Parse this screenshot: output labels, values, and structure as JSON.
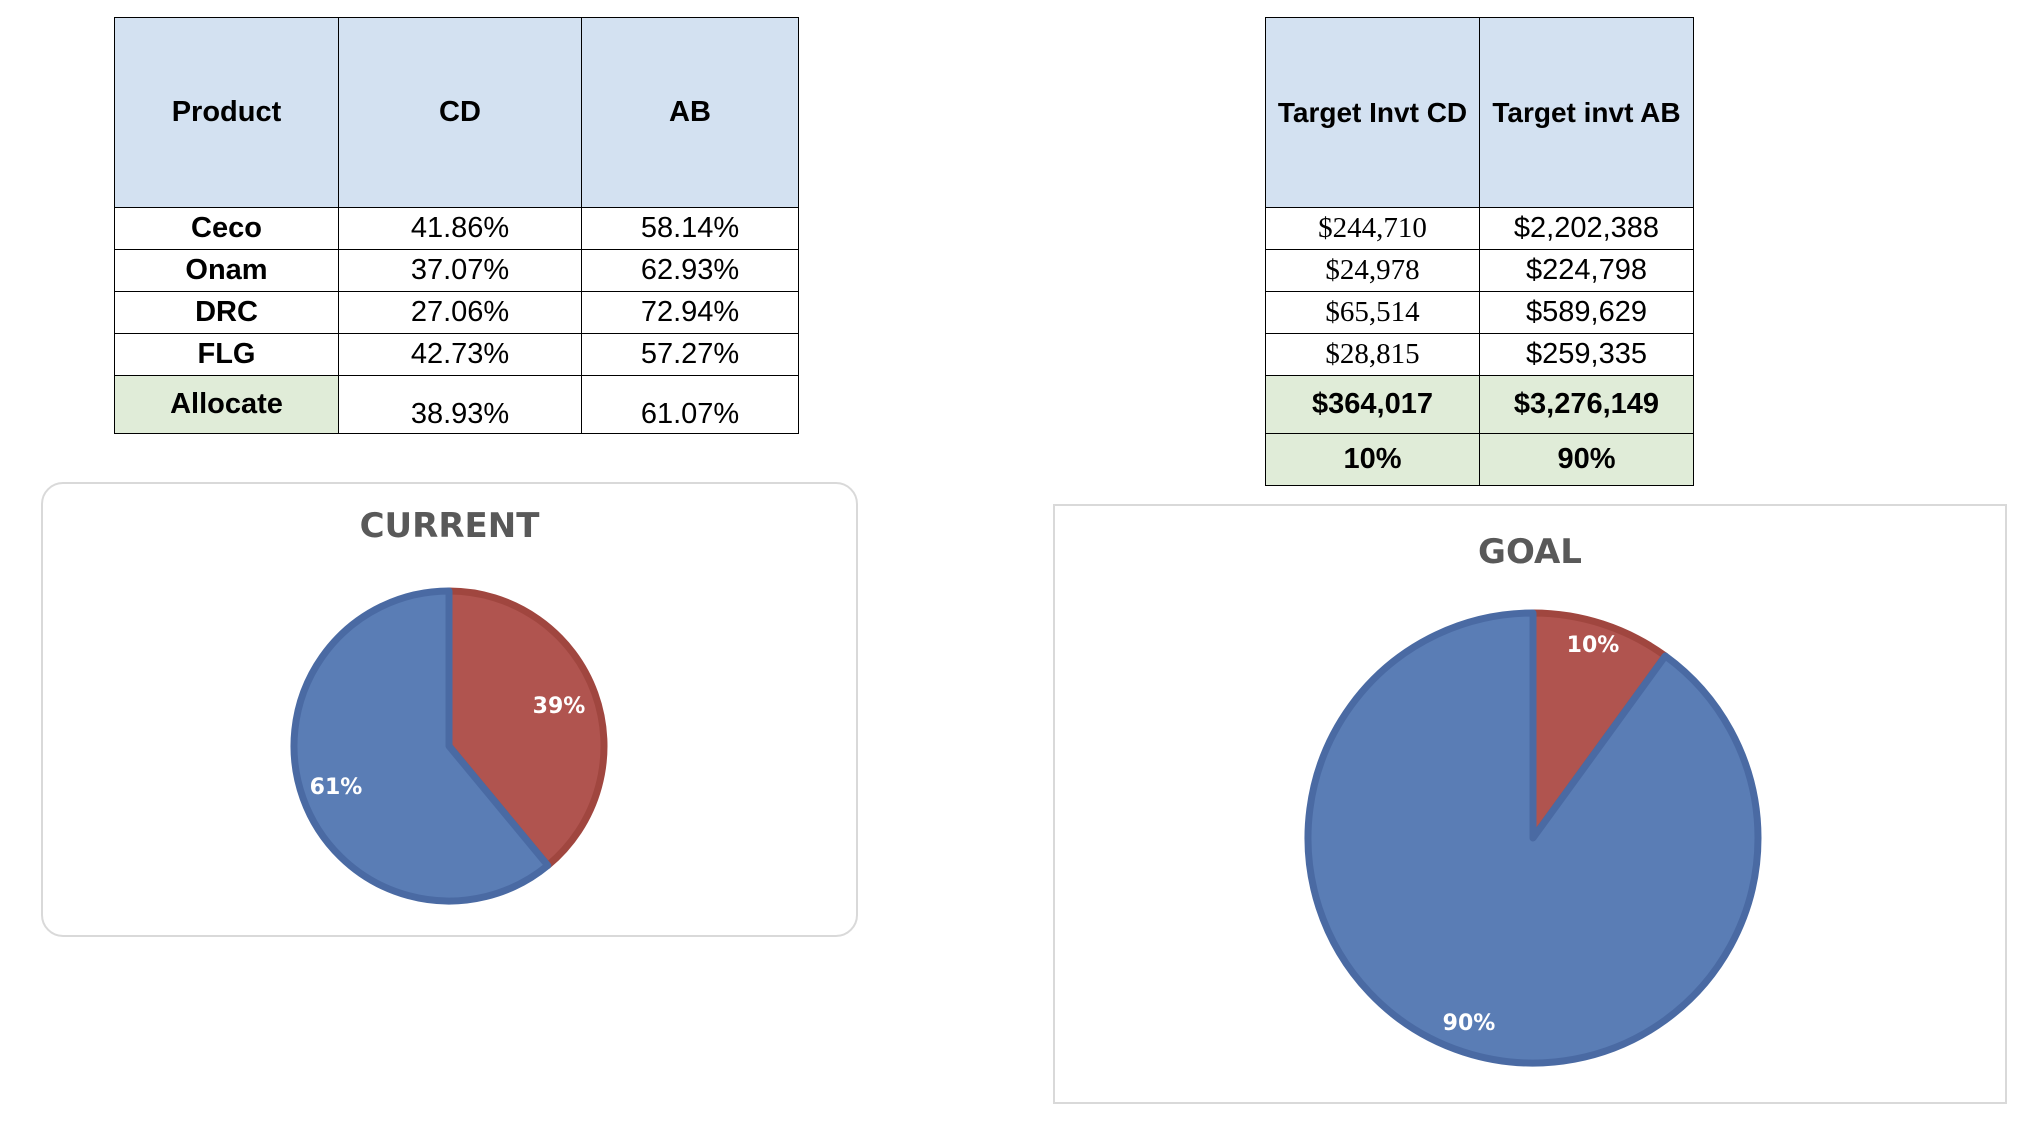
{
  "left_table": {
    "headers": [
      "Product",
      "CD",
      "AB"
    ],
    "rows": [
      [
        "Ceco",
        "41.86%",
        "58.14%"
      ],
      [
        "Onam",
        "37.07%",
        "62.93%"
      ],
      [
        "DRC",
        "27.06%",
        "72.94%"
      ],
      [
        "FLG",
        "42.73%",
        "57.27%"
      ]
    ],
    "allocate": [
      "Allocate",
      "38.93%",
      "61.07%"
    ]
  },
  "right_table": {
    "headers": [
      "Target Invt CD",
      "Target invt AB"
    ],
    "rows": [
      [
        "$244,710",
        "$2,202,388"
      ],
      [
        "$24,978",
        "$224,798"
      ],
      [
        "$65,514",
        "$589,629"
      ],
      [
        "$28,815",
        "$259,335"
      ]
    ],
    "total": [
      "$364,017",
      "$3,276,149"
    ],
    "pct": [
      "10%",
      "90%"
    ]
  },
  "colors": {
    "cd": "#b0544f",
    "ab": "#5a7db5",
    "cd_edge": "#a0463f",
    "ab_edge": "#4a6aa3"
  },
  "chart_data": [
    {
      "type": "pie",
      "title": "CURRENT",
      "slices": [
        {
          "value": 39,
          "label": "39%"
        },
        {
          "value": 61,
          "label": "61%"
        }
      ]
    },
    {
      "type": "pie",
      "title": "GOAL",
      "slices": [
        {
          "value": 10,
          "label": "10%"
        },
        {
          "value": 90,
          "label": "90%"
        }
      ]
    }
  ]
}
